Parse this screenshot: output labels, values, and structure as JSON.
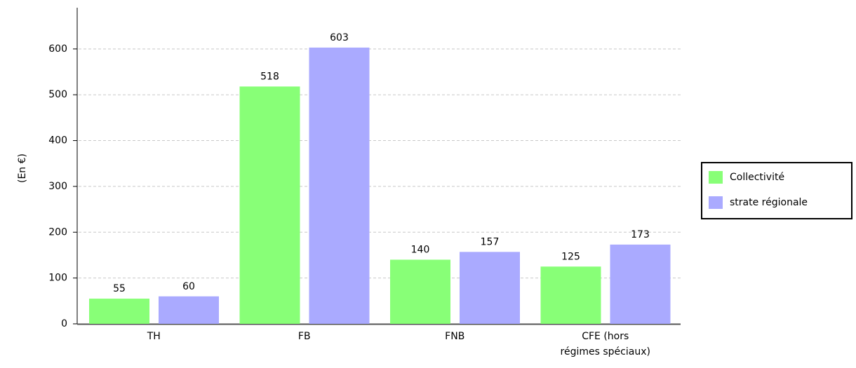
{
  "chart_data": {
    "type": "bar",
    "y_label": "(En €)",
    "categories": [
      "TH",
      "FB",
      "FNB",
      "CFE (hors\nrégimes spéciaux)"
    ],
    "series": [
      {
        "name": "Collectivité",
        "color": "#88ff77",
        "values": [
          55,
          518,
          140,
          125
        ]
      },
      {
        "name": "strate régionale",
        "color": "#aaaaff",
        "values": [
          60,
          603,
          157,
          173
        ]
      }
    ],
    "ylim": [
      0,
      690
    ],
    "yticks": [
      0,
      100,
      200,
      300,
      400,
      500,
      600
    ],
    "grid": true,
    "legend": "right"
  }
}
